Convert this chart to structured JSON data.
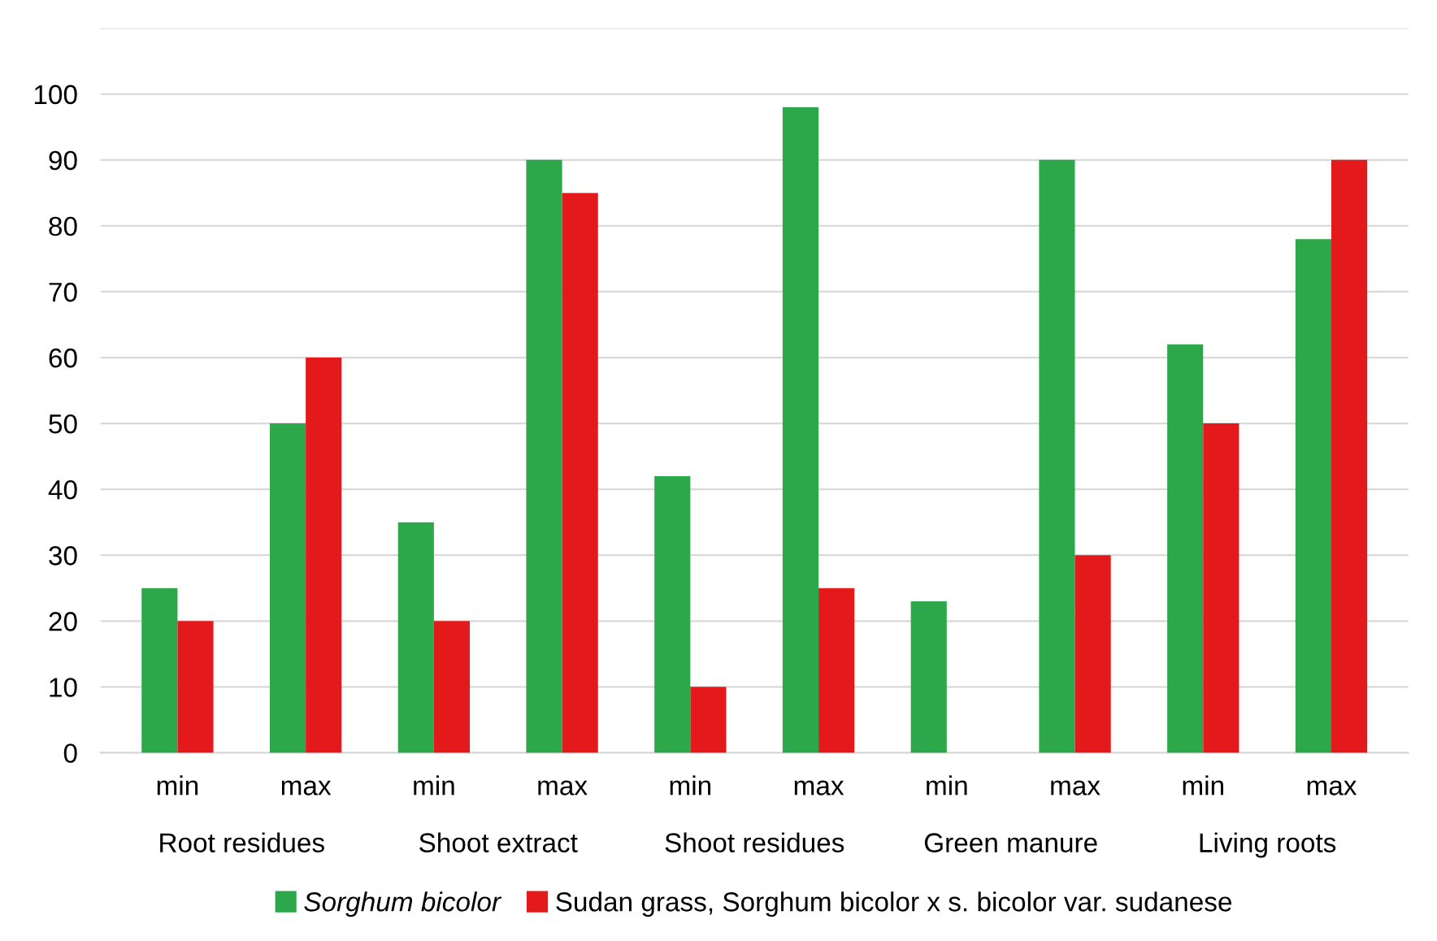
{
  "chart_data": {
    "type": "bar",
    "categories": [
      "min",
      "max",
      "min",
      "max",
      "min",
      "max",
      "min",
      "max",
      "min",
      "max"
    ],
    "series": [
      {
        "name": "Sorghum bicolor",
        "color": "#2ca84a",
        "values": [
          25,
          50,
          35,
          90,
          42,
          98,
          23,
          90,
          62,
          78
        ]
      },
      {
        "name": "Sudan grass, Sorghum bicolor x s. bicolor var. sudanese",
        "color": "#e3191c",
        "values": [
          20,
          60,
          20,
          85,
          10,
          25,
          0,
          30,
          50,
          90
        ]
      }
    ],
    "annotations": [
      "Root residues",
      "Shoot extract",
      "Shoot residues",
      "Green manure",
      "Living roots"
    ],
    "ylim": [
      0,
      110
    ],
    "yticks": [
      0,
      10,
      20,
      30,
      40,
      50,
      60,
      70,
      80,
      90,
      100,
      {
        "value": 110,
        "label": null
      }
    ],
    "grid": "y",
    "legend": "bottom"
  }
}
